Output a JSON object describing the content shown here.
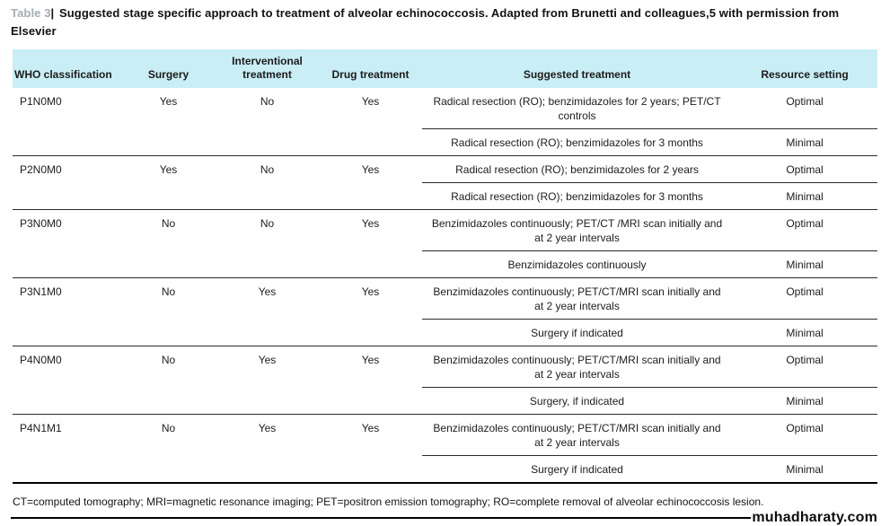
{
  "title": {
    "label": "Table 3",
    "separator": "|",
    "text": "Suggested stage specific approach to treatment of alveolar echinococcosis. Adapted from Brunetti and colleagues,5 with permission from Elsevier"
  },
  "table": {
    "headers": [
      "WHO classification",
      "Surgery",
      "Interventional treatment",
      "Drug treatment",
      "Suggested treatment",
      "Resource setting"
    ],
    "groups": [
      {
        "who": "P1N0M0",
        "surgery": "Yes",
        "interventional": "No",
        "drug": "Yes",
        "rows": [
          {
            "treatment": "Radical resection (RO); benzimidazoles for 2 years; PET/CT controls",
            "setting": "Optimal"
          },
          {
            "treatment": "Radical resection (RO); benzimidazoles for 3 months",
            "setting": "Minimal"
          }
        ]
      },
      {
        "who": "P2N0M0",
        "surgery": "Yes",
        "interventional": "No",
        "drug": "Yes",
        "rows": [
          {
            "treatment": "Radical resection (RO); benzimidazoles for 2 years",
            "setting": "Optimal"
          },
          {
            "treatment": "Radical resection (RO); benzimidazoles for 3 months",
            "setting": "Minimal"
          }
        ]
      },
      {
        "who": "P3N0M0",
        "surgery": "No",
        "interventional": "No",
        "drug": "Yes",
        "rows": [
          {
            "treatment": "Benzimidazoles continuously; PET/CT /MRI scan initially and at 2 year intervals",
            "setting": "Optimal"
          },
          {
            "treatment": "Benzimidazoles continuously",
            "setting": "Minimal"
          }
        ]
      },
      {
        "who": "P3N1M0",
        "surgery": "No",
        "interventional": "Yes",
        "drug": "Yes",
        "rows": [
          {
            "treatment": "Benzimidazoles continuously; PET/CT/MRI scan initially and at 2 year intervals",
            "setting": "Optimal"
          },
          {
            "treatment": "Surgery if indicated",
            "setting": "Minimal"
          }
        ]
      },
      {
        "who": "P4N0M0",
        "surgery": "No",
        "interventional": "Yes",
        "drug": "Yes",
        "rows": [
          {
            "treatment": "Benzimidazoles continuously; PET/CT/MRI scan initially and at 2 year intervals",
            "setting": "Optimal"
          },
          {
            "treatment": "Surgery, if indicated",
            "setting": "Minimal"
          }
        ]
      },
      {
        "who": "P4N1M1",
        "surgery": "No",
        "interventional": "Yes",
        "drug": "Yes",
        "rows": [
          {
            "treatment": "Benzimidazoles continuously; PET/CT/MRI scan initially and at 2 year intervals",
            "setting": "Optimal"
          },
          {
            "treatment": "Surgery if indicated",
            "setting": "Minimal"
          }
        ]
      }
    ]
  },
  "footnote": "CT=computed tomography; MRI=magnetic resonance imaging; PET=positron emission tomography; RO=complete removal of alveolar echinococcosis lesion.",
  "watermark": "muhadharaty.com",
  "colors": {
    "header_bg": "#c9eef5",
    "table_label_gray": "#a5aeb4",
    "text": "#1c1c1c",
    "rule": "#2b2b2b"
  }
}
